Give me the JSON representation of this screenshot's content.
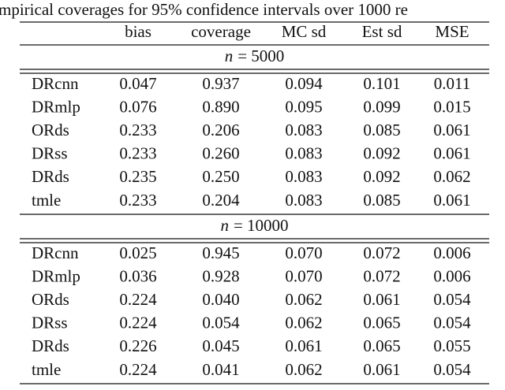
{
  "caption": "mpirical coverages for 95% confidence intervals over 1000 re",
  "table": {
    "columns": [
      "bias",
      "coverage",
      "MC sd",
      "Est sd",
      "MSE"
    ],
    "sections": [
      {
        "label": {
          "variable": "n",
          "text": "= 5000"
        },
        "rows": [
          [
            "DRcnn",
            "0.047",
            "0.937",
            "0.094",
            "0.101",
            "0.011"
          ],
          [
            "DRmlp",
            "0.076",
            "0.890",
            "0.095",
            "0.099",
            "0.015"
          ],
          [
            "ORds",
            "0.233",
            "0.206",
            "0.083",
            "0.085",
            "0.061"
          ],
          [
            "DRss",
            "0.233",
            "0.260",
            "0.083",
            "0.092",
            "0.061"
          ],
          [
            "DRds",
            "0.235",
            "0.250",
            "0.083",
            "0.092",
            "0.062"
          ],
          [
            "tmle",
            "0.233",
            "0.204",
            "0.083",
            "0.085",
            "0.061"
          ]
        ]
      },
      {
        "label": {
          "variable": "n",
          "text": "= 10000"
        },
        "rows": [
          [
            "DRcnn",
            "0.025",
            "0.945",
            "0.070",
            "0.072",
            "0.006"
          ],
          [
            "DRmlp",
            "0.036",
            "0.928",
            "0.070",
            "0.072",
            "0.006"
          ],
          [
            "ORds",
            "0.224",
            "0.040",
            "0.062",
            "0.061",
            "0.054"
          ],
          [
            "DRss",
            "0.224",
            "0.054",
            "0.062",
            "0.065",
            "0.054"
          ],
          [
            "DRds",
            "0.226",
            "0.045",
            "0.061",
            "0.065",
            "0.055"
          ],
          [
            "tmle",
            "0.224",
            "0.041",
            "0.062",
            "0.061",
            "0.054"
          ]
        ]
      }
    ]
  }
}
